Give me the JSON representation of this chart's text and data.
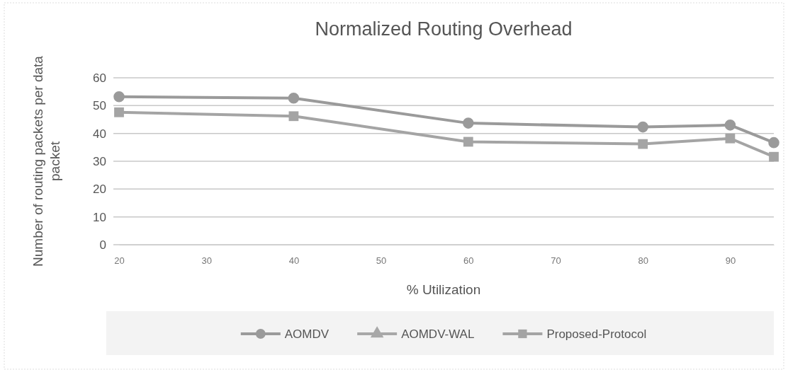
{
  "chart_data": {
    "type": "line",
    "title": "Normalized Routing Overhead",
    "xlabel": "% Utilization",
    "ylabel": "Number of routing packets per data packet",
    "x": [
      20,
      40,
      60,
      80,
      90,
      95
    ],
    "xlim": [
      20,
      95
    ],
    "xticks": [
      20,
      30,
      40,
      50,
      60,
      70,
      80,
      90
    ],
    "ylim": [
      0,
      60
    ],
    "yticks": [
      0,
      10,
      20,
      30,
      40,
      50,
      60
    ],
    "grid": "y",
    "legend": "bottom",
    "series": [
      {
        "name": "AOMDV",
        "color": "#9a9a9a",
        "marker": "circle",
        "values": [
          53.2,
          52.7,
          43.7,
          42.3,
          43,
          36.7
        ]
      },
      {
        "name": "AOMDV-WAL",
        "color": "#a8a8a8",
        "marker": "triangle",
        "values": [
          null,
          null,
          null,
          null,
          null,
          null
        ]
      },
      {
        "name": "Proposed-Protocol",
        "color": "#a4a4a4",
        "marker": "square",
        "values": [
          47.6,
          46.2,
          37,
          36.2,
          38.2,
          31.6
        ]
      }
    ]
  }
}
